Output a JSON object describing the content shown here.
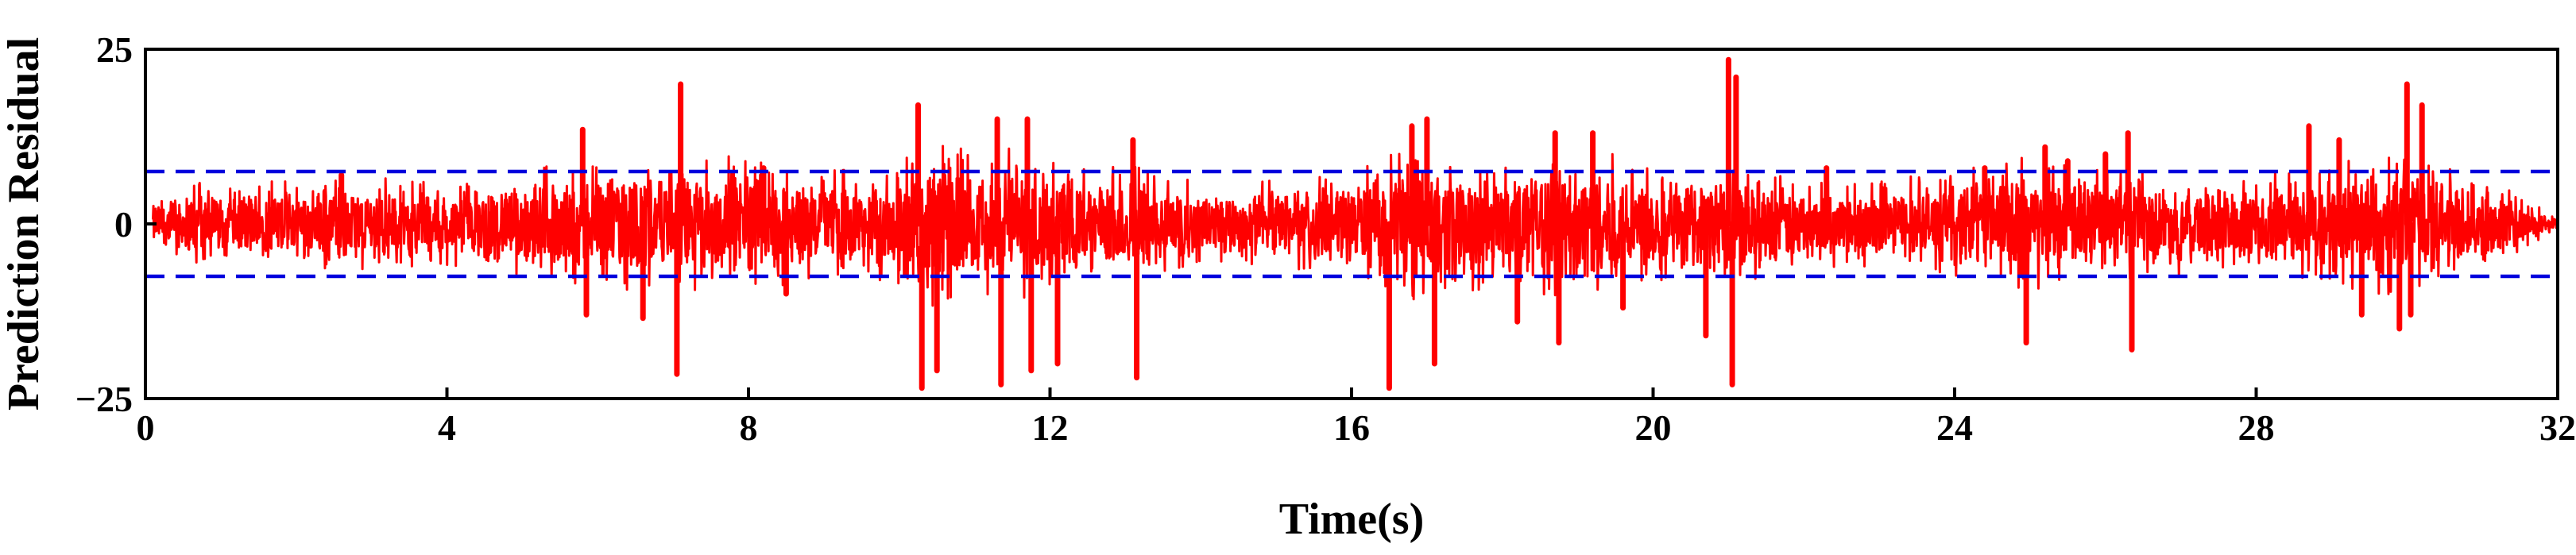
{
  "chart_data": {
    "type": "line",
    "title": "",
    "xlabel": "Time(s)",
    "ylabel": "Prediction Residual",
    "xlim": [
      0,
      32
    ],
    "ylim": [
      -25,
      25
    ],
    "x_ticks": [
      "0",
      "4",
      "8",
      "12",
      "16",
      "20",
      "24",
      "28",
      "32"
    ],
    "y_ticks": [
      "−25",
      "0",
      "25"
    ],
    "grid": false,
    "legend": "none",
    "colors": {
      "residual": "#ff0000",
      "threshold": "#0000dd",
      "axis": "#000000"
    },
    "thresholds": [
      7.5,
      -7.5
    ],
    "series": [
      {
        "style": "solid",
        "envelope": {
          "x": [
            0.1,
            0.5,
            1,
            2,
            3,
            4,
            5,
            5.5,
            6,
            6.5,
            7,
            7.5,
            8,
            8.5,
            9,
            9.5,
            10,
            10.5,
            11,
            11.5,
            12,
            12.5,
            13,
            13.5,
            14,
            15,
            16,
            16.5,
            17,
            17.5,
            18,
            18.5,
            19,
            19.5,
            20,
            20.5,
            21,
            21.5,
            22,
            23,
            24,
            24.5,
            25,
            25.5,
            26,
            26.5,
            27,
            28,
            28.5,
            29,
            29.5,
            30,
            30.5,
            31,
            31.5,
            32
          ],
          "upper": [
            3,
            4.5,
            5,
            5,
            5.5,
            5,
            6,
            7,
            8,
            7.5,
            8,
            7.5,
            8,
            7,
            6.5,
            6,
            7,
            10,
            8,
            9,
            8,
            7,
            7,
            6,
            5,
            5,
            6,
            8,
            9,
            8,
            7,
            8,
            9,
            8,
            7,
            6,
            8,
            6,
            5,
            5,
            6,
            7,
            8,
            7,
            7,
            6,
            6,
            5,
            7,
            8,
            8,
            9,
            7,
            6,
            3,
            1
          ],
          "lower": [
            -3,
            -4.5,
            -5,
            -5,
            -5.5,
            -5,
            -6,
            -7,
            -8,
            -7.5,
            -8,
            -7.5,
            -8,
            -7,
            -6.5,
            -6,
            -7,
            -10,
            -8,
            -9,
            -8,
            -7,
            -7,
            -6,
            -5,
            -5,
            -6,
            -8,
            -9,
            -8,
            -7,
            -8,
            -9,
            -8,
            -7,
            -6,
            -8,
            -6,
            -5,
            -5,
            -6,
            -7,
            -8,
            -7,
            -7,
            -6,
            -6,
            -5,
            -7,
            -8,
            -8,
            -9,
            -7,
            -6,
            -3,
            -1
          ]
        },
        "spikes": [
          {
            "x": 2.6,
            "y": 7
          },
          {
            "x": 5.8,
            "y": 13.5
          },
          {
            "x": 5.85,
            "y": -13
          },
          {
            "x": 6.6,
            "y": -13.5
          },
          {
            "x": 7.05,
            "y": -21.5
          },
          {
            "x": 7.1,
            "y": 20
          },
          {
            "x": 8.2,
            "y": 8
          },
          {
            "x": 8.5,
            "y": -10
          },
          {
            "x": 10.25,
            "y": 17
          },
          {
            "x": 10.3,
            "y": -23.5
          },
          {
            "x": 10.5,
            "y": -21
          },
          {
            "x": 11.3,
            "y": 15
          },
          {
            "x": 11.35,
            "y": -23
          },
          {
            "x": 11.7,
            "y": 15
          },
          {
            "x": 11.75,
            "y": -21
          },
          {
            "x": 12.1,
            "y": -20
          },
          {
            "x": 13.1,
            "y": 12
          },
          {
            "x": 13.15,
            "y": -22
          },
          {
            "x": 16.5,
            "y": -23.5
          },
          {
            "x": 16.8,
            "y": 14
          },
          {
            "x": 17.0,
            "y": 15
          },
          {
            "x": 17.1,
            "y": -20
          },
          {
            "x": 18.2,
            "y": -14
          },
          {
            "x": 18.7,
            "y": 13
          },
          {
            "x": 18.75,
            "y": -17
          },
          {
            "x": 19.2,
            "y": 13
          },
          {
            "x": 19.6,
            "y": -12
          },
          {
            "x": 20.7,
            "y": -16
          },
          {
            "x": 21.0,
            "y": 23.5
          },
          {
            "x": 21.05,
            "y": -23
          },
          {
            "x": 21.1,
            "y": 21
          },
          {
            "x": 22.3,
            "y": 8
          },
          {
            "x": 24.4,
            "y": 8
          },
          {
            "x": 24.95,
            "y": -17
          },
          {
            "x": 25.2,
            "y": 11
          },
          {
            "x": 25.5,
            "y": 9
          },
          {
            "x": 26.0,
            "y": 10
          },
          {
            "x": 26.35,
            "y": -18
          },
          {
            "x": 26.3,
            "y": 13
          },
          {
            "x": 28.7,
            "y": 14
          },
          {
            "x": 29.1,
            "y": 12
          },
          {
            "x": 29.4,
            "y": -13
          },
          {
            "x": 29.9,
            "y": -15
          },
          {
            "x": 30.0,
            "y": 20
          },
          {
            "x": 30.05,
            "y": -13
          },
          {
            "x": 30.2,
            "y": 17
          }
        ]
      },
      {
        "style": "dashed",
        "values_y": 7.5
      },
      {
        "style": "dashed",
        "values_y": -7.5
      }
    ]
  }
}
